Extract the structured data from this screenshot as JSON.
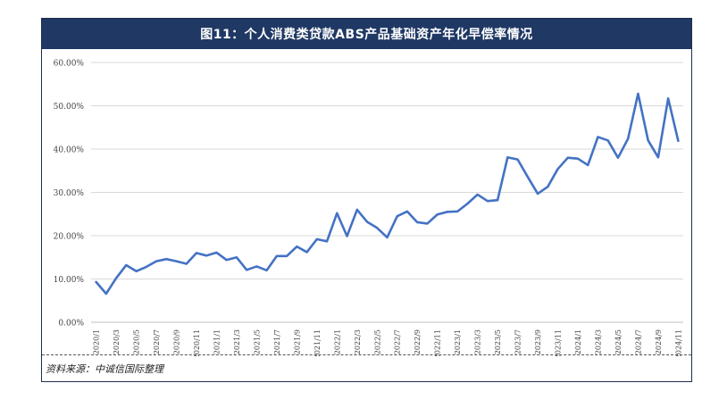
{
  "title": "图11：个人消费类贷款ABS产品基础资产年化早偿率情况",
  "source": "资料来源：中诚信国际整理",
  "chart_data": {
    "type": "line",
    "title": "图11：个人消费类贷款ABS产品基础资产年化早偿率情况",
    "xlabel": "",
    "ylabel": "",
    "ylim": [
      0,
      60
    ],
    "yticks": [
      "0.00%",
      "10.00%",
      "20.00%",
      "30.00%",
      "40.00%",
      "50.00%",
      "60.00%"
    ],
    "grid": true,
    "x_tick_labels": [
      "2020/1",
      "2020/3",
      "2020/5",
      "2020/7",
      "2020/9",
      "2020/11",
      "2021/1",
      "2021/3",
      "2021/5",
      "2021/7",
      "2021/9",
      "2021/11",
      "2022/1",
      "2022/3",
      "2022/5",
      "2022/7",
      "2022/9",
      "2022/11",
      "2023/1",
      "2023/3",
      "2023/5",
      "2023/7",
      "2023/9",
      "2023/11",
      "2024/1",
      "2024/3",
      "2024/5",
      "2024/7",
      "2024/9",
      "2024/11"
    ],
    "x": [
      "2020/1",
      "2020/2",
      "2020/3",
      "2020/4",
      "2020/5",
      "2020/6",
      "2020/7",
      "2020/8",
      "2020/9",
      "2020/10",
      "2020/11",
      "2020/12",
      "2021/1",
      "2021/2",
      "2021/3",
      "2021/4",
      "2021/5",
      "2021/6",
      "2021/7",
      "2021/8",
      "2021/9",
      "2021/10",
      "2021/11",
      "2021/12",
      "2022/1",
      "2022/2",
      "2022/3",
      "2022/4",
      "2022/5",
      "2022/6",
      "2022/7",
      "2022/8",
      "2022/9",
      "2022/10",
      "2022/11",
      "2022/12",
      "2023/1",
      "2023/2",
      "2023/3",
      "2023/4",
      "2023/5",
      "2023/6",
      "2023/7",
      "2023/8",
      "2023/9",
      "2023/10",
      "2023/11",
      "2023/12",
      "2024/1",
      "2024/2",
      "2024/3",
      "2024/4",
      "2024/5",
      "2024/6",
      "2024/7",
      "2024/8",
      "2024/9",
      "2024/10",
      "2024/11"
    ],
    "series": [
      {
        "color": "#4472c4",
        "values": [
          9.3,
          6.6,
          10.2,
          13.2,
          11.8,
          12.8,
          14.1,
          14.6,
          14.1,
          13.5,
          16.0,
          15.4,
          16.1,
          14.4,
          15.0,
          12.1,
          12.9,
          12.0,
          15.3,
          15.3,
          17.5,
          16.2,
          19.2,
          18.7,
          25.2,
          19.9,
          26.0,
          23.2,
          21.8,
          19.6,
          24.5,
          25.6,
          23.1,
          22.8,
          24.9,
          25.5,
          25.6,
          27.4,
          29.5,
          28.0,
          28.2,
          38.1,
          37.6,
          33.6,
          29.7,
          31.3,
          35.4,
          38.0,
          37.8,
          36.3,
          42.8,
          42.0,
          38.0,
          42.4,
          52.8,
          42.0,
          38.1,
          51.7,
          41.9
        ]
      }
    ]
  }
}
